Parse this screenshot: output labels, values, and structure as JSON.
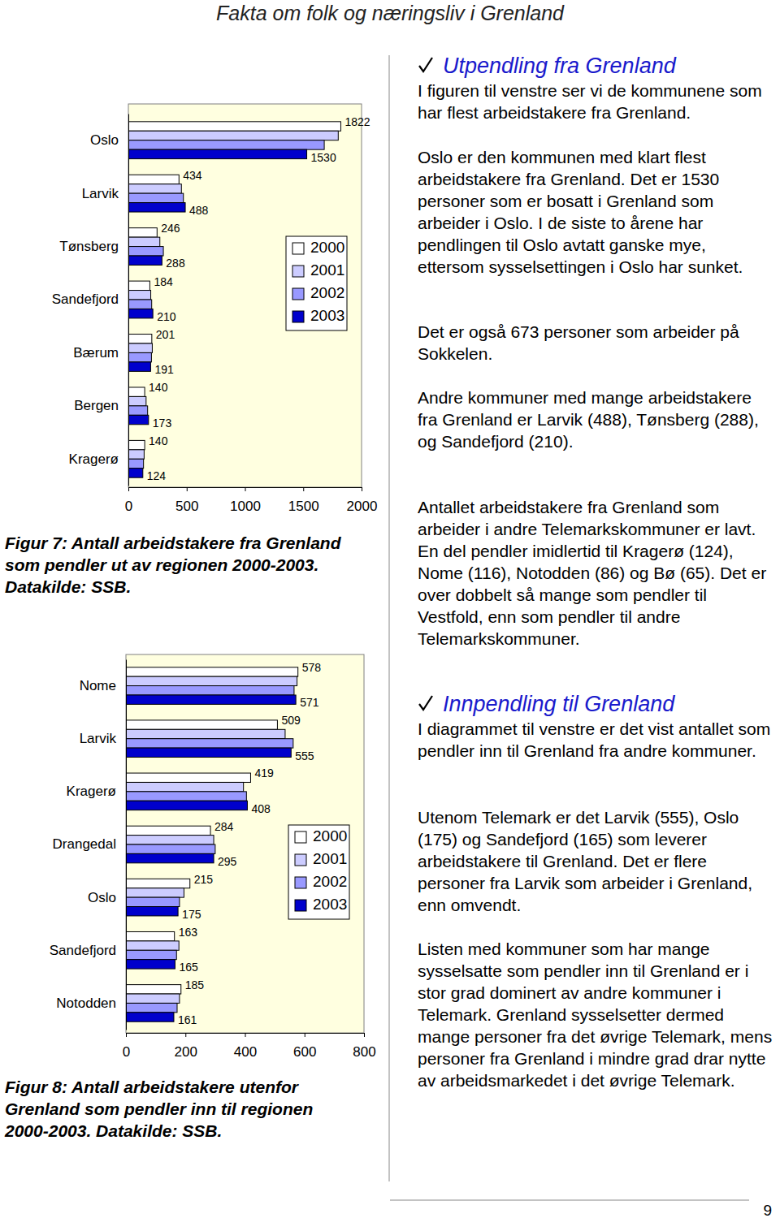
{
  "header": {
    "title": "Fakta om folk og næringsliv i Grenland"
  },
  "chart_data": [
    {
      "type": "bar",
      "orientation": "horizontal",
      "categories": [
        "Oslo",
        "Larvik",
        "Tønsberg",
        "Sandefjord",
        "Bærum",
        "Bergen",
        "Kragerø"
      ],
      "series": [
        {
          "name": "2000",
          "color": "#ffffff",
          "values": [
            1822,
            434,
            246,
            184,
            201,
            140,
            140
          ],
          "data_labels": true
        },
        {
          "name": "2001",
          "color": "#ccccff",
          "values": [
            1800,
            455,
            270,
            192,
            205,
            152,
            135
          ]
        },
        {
          "name": "2002",
          "color": "#9999ff",
          "values": [
            1680,
            472,
            300,
            200,
            198,
            165,
            130
          ]
        },
        {
          "name": "2003",
          "color": "#0000cc",
          "values": [
            1530,
            488,
            288,
            210,
            191,
            173,
            124
          ],
          "data_labels": true
        }
      ],
      "xlim": [
        0,
        2000
      ],
      "xticks": [
        0,
        500,
        1000,
        1500,
        2000
      ],
      "legend": "right",
      "grid": false
    },
    {
      "type": "bar",
      "orientation": "horizontal",
      "categories": [
        "Nome",
        "Larvik",
        "Kragerø",
        "Drangedal",
        "Oslo",
        "Sandefjord",
        "Notodden"
      ],
      "series": [
        {
          "name": "2000",
          "color": "#ffffff",
          "values": [
            578,
            509,
            419,
            284,
            215,
            163,
            185
          ],
          "data_labels": true
        },
        {
          "name": "2001",
          "color": "#ccccff",
          "values": [
            575,
            535,
            395,
            295,
            195,
            178,
            180
          ]
        },
        {
          "name": "2002",
          "color": "#9999ff",
          "values": [
            565,
            562,
            405,
            300,
            180,
            170,
            172
          ]
        },
        {
          "name": "2003",
          "color": "#0000cc",
          "values": [
            571,
            555,
            408,
            295,
            175,
            165,
            161
          ],
          "data_labels": true
        }
      ],
      "xlim": [
        0,
        800
      ],
      "xticks": [
        0,
        200,
        400,
        600,
        800
      ],
      "legend": "lower right",
      "grid": false
    }
  ],
  "captions": [
    "Figur 7: Antall arbeidstakere fra Grenland som pendler ut av regionen 2000-2003. Datakilde: SSB.",
    "Figur 8: Antall arbeidstakere utenfor Grenland som pendler inn til regionen 2000-2003. Datakilde: SSB."
  ],
  "sections": [
    {
      "heading": "Utpendling fra Grenland",
      "paragraphs": [
        "I figuren til venstre ser vi de kommunene som har flest arbeidstakere fra Grenland.",
        "Oslo er den kommunen med klart flest arbeidstakere fra Grenland. Det er 1530 personer som er bosatt i Grenland som arbeider i Oslo. I de siste to årene har pendlingen til Oslo avtatt ganske mye, ettersom sysselsettingen i Oslo har sunket.",
        "Det er også 673 personer som arbeider på Sokkelen.",
        "Andre kommuner med mange arbeidstakere fra Grenland er Larvik (488), Tønsberg (288), og Sandefjord (210).",
        "Antallet arbeidstakere fra Grenland som arbeider i andre Telemarkskommuner er lavt. En del pendler imidlertid til Kragerø (124), Nome (116), Notodden (86) og Bø (65). Det er over dobbelt så mange som pendler til Vestfold, enn som pendler til andre Telemarkskommuner."
      ]
    },
    {
      "heading": "Innpendling til Grenland",
      "paragraphs": [
        "I diagrammet til venstre er det vist antallet som pendler inn til Grenland fra andre kommuner.",
        "Utenom Telemark er det Larvik (555), Oslo (175) og Sandefjord (165) som leverer arbeidstakere til Grenland. Det er flere personer fra Larvik som arbeider i Grenland, enn omvendt.",
        "Listen med kommuner som har mange sysselsatte som pendler inn til Grenland er i stor grad dominert av andre kommuner i Telemark. Grenland sysselsetter dermed mange personer fra det øvrige Telemark, mens personer fra Grenland i mindre grad drar nytte av arbeidsmarkedet i det øvrige Telemark."
      ]
    }
  ],
  "page_number": 9
}
